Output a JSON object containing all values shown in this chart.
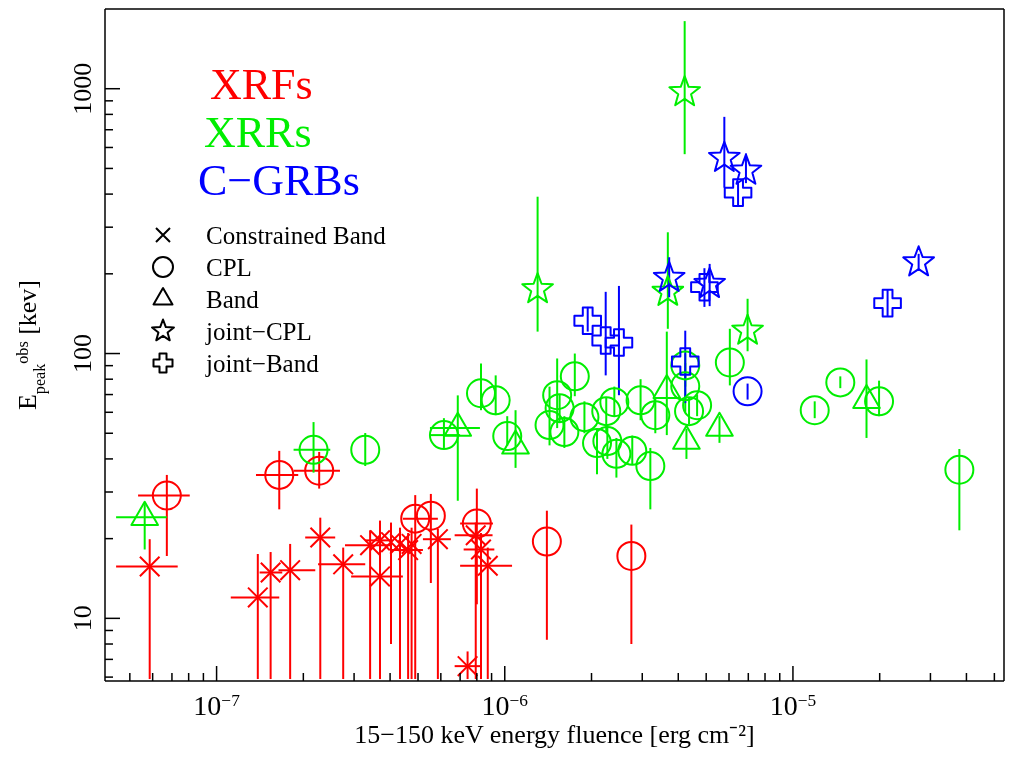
{
  "chart_data": {
    "type": "scatter",
    "xlabel": "15−150 keV energy fluence [erg cm⁻²]",
    "ylabel": "E$_{peak}$$^{obs}$ [kev]",
    "log": "xy",
    "legend": "top left",
    "xlim": [
      4.1e-08,
      5.4e-05
    ],
    "xticks": [
      {
        "value": 5e-08,
        "label": null
      },
      {
        "value": 6e-08,
        "label": null
      },
      {
        "value": 7e-08,
        "label": null
      },
      {
        "value": 8e-08,
        "label": null
      },
      {
        "value": 9e-08,
        "label": null
      },
      {
        "value": 1e-07,
        "label": "10$^{−7}$"
      },
      {
        "value": 2e-07,
        "label": null
      },
      {
        "value": 3e-07,
        "label": null
      },
      {
        "value": 4e-07,
        "label": null
      },
      {
        "value": 5e-07,
        "label": null
      },
      {
        "value": 6e-07,
        "label": null
      },
      {
        "value": 7e-07,
        "label": null
      },
      {
        "value": 8e-07,
        "label": null
      },
      {
        "value": 9e-07,
        "label": null
      },
      {
        "value": 1e-06,
        "label": "10$^{−6}$"
      },
      {
        "value": 2e-06,
        "label": null
      },
      {
        "value": 3e-06,
        "label": null
      },
      {
        "value": 4e-06,
        "label": null
      },
      {
        "value": 5e-06,
        "label": null
      },
      {
        "value": 6e-06,
        "label": null
      },
      {
        "value": 7e-06,
        "label": null
      },
      {
        "value": 8e-06,
        "label": null
      },
      {
        "value": 9e-06,
        "label": null
      },
      {
        "value": 1e-05,
        "label": "10$^{−5}$"
      },
      {
        "value": 2e-05,
        "label": null
      },
      {
        "value": 3e-05,
        "label": null
      },
      {
        "value": 4e-05,
        "label": null
      },
      {
        "value": 5e-05,
        "label": null
      }
    ],
    "ylim": [
      5.8,
      2000
    ],
    "yticks": [
      {
        "value": 6,
        "label": null
      },
      {
        "value": 7,
        "label": null
      },
      {
        "value": 8,
        "label": null
      },
      {
        "value": 9,
        "label": null
      },
      10,
      {
        "value": 20,
        "label": null
      },
      {
        "value": 30,
        "label": null
      },
      {
        "value": 40,
        "label": null
      },
      {
        "value": 50,
        "label": null
      },
      {
        "value": 60,
        "label": null
      },
      {
        "value": 70,
        "label": null
      },
      {
        "value": 80,
        "label": null
      },
      {
        "value": 90,
        "label": null
      },
      100,
      {
        "value": 200,
        "label": null
      },
      {
        "value": 300,
        "label": null
      },
      {
        "value": 400,
        "label": null
      },
      {
        "value": 500,
        "label": null
      },
      {
        "value": 600,
        "label": null
      },
      {
        "value": 700,
        "label": null
      },
      {
        "value": 800,
        "label": null
      },
      {
        "value": 900,
        "label": null
      },
      1000
    ],
    "annotations": [
      "Constrained Band",
      "CPL",
      "Band",
      "joint−CPL",
      "joint−Band"
    ],
    "marker": [
      "cross",
      "circle",
      "triangle",
      "star",
      "plus"
    ],
    "series": [
      {
        "name": "XRFs",
        "color": "#ff0000",
        "x": [
          5.86e-08,
          1.39e-07,
          1.54e-07,
          1.8e-07,
          2.29e-07,
          2.75e-07,
          3.41e-07,
          3.69e-07,
          3.69e-07,
          4.03e-07,
          4.33e-07,
          4.62e-07,
          4.75e-07,
          5.86e-07,
          7.43e-07,
          7.93e-07,
          8.27e-07,
          8.73e-07,
          6.72e-08,
          1.65e-07,
          2.27e-07,
          4.89e-07,
          5.54e-07,
          8e-07,
          1.4e-06,
          2.75e-06
        ],
        "values": [
          15.7,
          12.0,
          14.9,
          15.2,
          20.2,
          16.0,
          18.9,
          14.4,
          19.7,
          19.4,
          19.1,
          18.1,
          19.1,
          19.9,
          6.6,
          20.6,
          18.2,
          15.8,
          29.1,
          34.8,
          36.1,
          23.8,
          24.4,
          22.8,
          19.5,
          17.2
        ],
        "errors": [
          [
            5.9,
            19.9
          ],
          [
            5.9,
            17.5
          ],
          [
            5.9,
            17.8
          ],
          [
            5.9,
            19.1
          ],
          [
            5.9,
            24
          ],
          [
            5.9,
            18.5
          ],
          [
            5.9,
            21.5
          ],
          [
            5.9,
            23.4
          ],
          [
            5.9,
            22
          ],
          [
            8,
            23
          ],
          [
            5.9,
            22
          ],
          [
            5.9,
            21
          ],
          [
            5.9,
            22
          ],
          [
            5.9,
            21.8
          ],
          [
            5.9,
            7.5
          ],
          [
            5.9,
            23
          ],
          [
            5.9,
            21
          ],
          [
            5.9,
            18.5
          ],
          [
            17.2,
            34.8
          ],
          [
            25.8,
            42.9
          ],
          [
            30.9,
            42.5
          ],
          [
            5.9,
            29.2
          ],
          [
            13.6,
            29.5
          ],
          [
            11.3,
            30.9
          ],
          [
            8.3,
            25.5
          ],
          [
            8.0,
            22.6
          ]
        ],
        "xerrors": [
          [
            4.48e-08,
            7.33e-08
          ],
          [
            1.12e-07,
            1.65e-07
          ],
          [
            1.41e-07,
            1.69e-07
          ],
          [
            1.64e-07,
            2.2e-07
          ],
          [
            2.03e-07,
            2.58e-07
          ],
          [
            2.25e-07,
            3.28e-07
          ],
          [
            2.79e-07,
            4.03e-07
          ],
          [
            2.93e-07,
            4.43e-07
          ],
          [
            3.28e-07,
            4.03e-07
          ],
          null,
          null,
          [
            4e-07,
            5.2e-07
          ],
          null,
          [
            5.2e-07,
            6.5e-07
          ],
          [
            6.7e-07,
            8.3e-07
          ],
          [
            6.7e-07,
            9.07e-07
          ],
          [
            7.2e-07,
            9.2e-07
          ],
          [
            7e-07,
            1.06e-06
          ],
          [
            5.34e-08,
            8.07e-08
          ],
          [
            1.37e-07,
            1.92e-07
          ],
          [
            1.85e-07,
            2.68e-07
          ],
          [
            4.43e-07,
            5.86e-07
          ],
          null,
          [
            7e-07,
            9.1e-07
          ],
          null,
          null
        ],
        "marker": [
          "cross",
          "cross",
          "cross",
          "cross",
          "cross",
          "cross",
          "cross",
          "cross",
          "cross",
          "cross",
          "cross",
          "cross",
          "cross",
          "cross",
          "cross",
          "cross",
          "cross",
          "cross",
          "circle",
          "circle",
          "circle",
          "circle",
          "circle",
          "circle",
          "circle",
          "circle"
        ]
      },
      {
        "name": "XRRs",
        "color": "#00ee00",
        "x": [
          5.63e-08,
          2.17e-07,
          3.28e-07,
          6.15e-07,
          6.87e-07,
          8.27e-07,
          9.3e-07,
          1.02e-06,
          1.09e-06,
          1.75e-06,
          1.52e-06,
          1.55e-06,
          1.43e-06,
          1.61e-06,
          1.89e-06,
          2.25e-06,
          2.4e-06,
          2.09e-06,
          2.27e-06,
          2.44e-06,
          2.77e-06,
          2.96e-06,
          3.2e-06,
          3.33e-06,
          3.65e-06,
          4.23e-06,
          4.36e-06,
          4.65e-06,
          4.23e-06,
          4.27e-06,
          5.56e-06,
          6.04e-06,
          1.19e-05,
          1.46e-05,
          1.8e-05,
          1.99e-05,
          3.78e-05,
          4.21e-06,
          1.3e-06,
          3.68e-06,
          6.96e-06
        ],
        "values": [
          24.1,
          43.3,
          43.3,
          49.2,
          52.3,
          70.8,
          66.6,
          48.8,
          44.8,
          82,
          69.6,
          62.2,
          53.7,
          50.5,
          57.5,
          60.6,
          65.5,
          45.9,
          46.7,
          41.8,
          42.9,
          66.6,
          37.6,
          58.5,
          72.6,
          75.2,
          60.6,
          63.8,
          90.2,
          46.7,
          52.3,
          92.5,
          61.1,
          77.8,
          66.6,
          66,
          36.4,
          970,
          175,
          171,
          122
        ],
        "errors": [
          [
            18.2,
            27
          ],
          [
            35.5,
            55.1
          ],
          [
            37.6,
            50.1
          ],
          [
            44,
            57
          ],
          [
            27.8,
            69.5
          ],
          [
            61.1,
            91.7
          ],
          [
            58.5,
            82.7
          ],
          [
            44.8,
            58
          ],
          [
            37,
            61.1
          ],
          [
            69,
            100
          ],
          [
            52.3,
            95.8
          ],
          [
            55,
            70
          ],
          [
            45,
            75
          ],
          [
            44,
            58
          ],
          [
            50,
            66
          ],
          [
            50,
            68
          ],
          [
            58,
            75
          ],
          [
            35,
            52
          ],
          [
            40,
            53
          ],
          [
            34,
            48
          ],
          [
            38,
            49
          ],
          [
            56,
            80
          ],
          [
            25.8,
            44
          ],
          [
            50,
            68
          ],
          [
            49.2,
            121
          ],
          [
            60,
            92
          ],
          [
            54,
            68
          ],
          [
            58,
            70
          ],
          [
            75,
            100
          ],
          [
            40,
            52
          ],
          [
            46,
            58
          ],
          [
            75.8,
            124
          ],
          [
            57,
            66
          ],
          [
            74,
            82
          ],
          [
            48,
            95
          ],
          [
            58,
            79
          ],
          [
            21.5,
            43.6
          ],
          [
            566,
            1800
          ],
          [
            121,
            391
          ],
          [
            124,
            287
          ],
          [
            102,
            161
          ]
        ],
        "xerrors": [
          [
            4.48e-08,
            6.72e-08
          ],
          [
            1.85e-07,
            2.48e-07
          ],
          null,
          [
            5.5e-07,
            7e-07
          ],
          [
            5.5e-07,
            8.2e-07
          ],
          null,
          null,
          null,
          null,
          null,
          null,
          null,
          null,
          null,
          null,
          null,
          null,
          null,
          null,
          null,
          null,
          null,
          null,
          null,
          null,
          null,
          null,
          null,
          null,
          null,
          null,
          null,
          null,
          null,
          null,
          null,
          null,
          null,
          null,
          null,
          null
        ],
        "marker": [
          "triangle",
          "circle",
          "circle",
          "circle",
          "triangle",
          "circle",
          "circle",
          "circle",
          "triangle",
          "circle",
          "circle",
          "circle",
          "circle",
          "circle",
          "circle",
          "circle",
          "circle",
          "circle",
          "circle",
          "circle",
          "circle",
          "circle",
          "circle",
          "circle",
          "triangle",
          "circle",
          "circle",
          "circle",
          "circle",
          "triangle",
          "triangle",
          "circle",
          "circle",
          "circle",
          "triangle",
          "circle",
          "circle",
          "star",
          "star",
          "star",
          "star"
        ]
      },
      {
        "name": "C−GRBs",
        "color": "#0000ff",
        "x": [
          5.78e-06,
          6.87e-06,
          3.72e-06,
          5.14e-06,
          2.73e-05,
          6.96e-06,
          6.45e-06,
          1.94e-06,
          2.24e-06,
          2.49e-06,
          4.93e-06,
          4.23e-06,
          2.13e-05
        ],
        "values": [
          548,
          490,
          193,
          183,
          221,
          72,
          405,
          133,
          112,
          110,
          178,
          93.3,
          155
        ],
        "errors": [
          [
            423,
            783
          ],
          [
            440,
            570
          ],
          [
            163,
            231
          ],
          [
            151,
            218
          ],
          [
            205,
            238
          ],
          [
            67,
            77
          ],
          [
            358,
            445
          ],
          [
            121,
            150
          ],
          [
            82.7,
            171
          ],
          [
            69.6,
            180
          ],
          [
            150,
            210
          ],
          [
            65,
            122
          ],
          [
            138,
            175
          ]
        ],
        "marker": [
          "star",
          "star",
          "star",
          "star",
          "star",
          "circle",
          "plus",
          "plus",
          "plus",
          "plus",
          "plus",
          "plus",
          "plus"
        ]
      }
    ]
  }
}
